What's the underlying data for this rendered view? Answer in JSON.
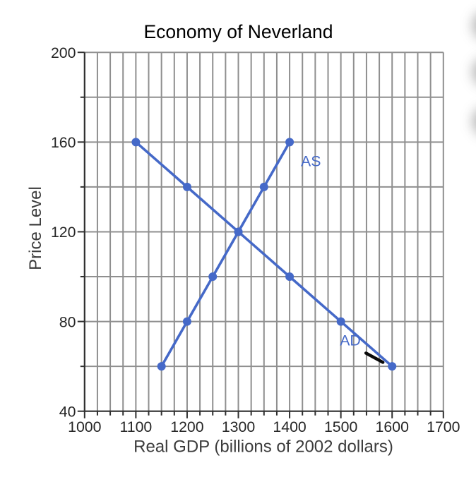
{
  "chart_data": {
    "type": "line",
    "title": "Economy of Neverland",
    "xlabel": "Real GDP (billions of 2002 dollars)",
    "ylabel": "Price Level",
    "xlim": [
      1000,
      1700
    ],
    "ylim": [
      40,
      200
    ],
    "x_major_ticks": [
      1000,
      1100,
      1200,
      1300,
      1400,
      1500,
      1600,
      1700
    ],
    "x_minor_step": 25,
    "y_major_ticks": [
      40,
      80,
      120,
      160,
      200
    ],
    "y_minor_step": 20,
    "grid": true,
    "legend_position": "inline-labels",
    "series": [
      {
        "name": "AD",
        "x": [
          1100,
          1200,
          1300,
          1400,
          1500,
          1600
        ],
        "y": [
          160,
          140,
          120,
          100,
          80,
          60
        ],
        "color": "#4569c8",
        "marker": "circle",
        "label": {
          "text": "AD",
          "x": 1498,
          "y": 69.3
        }
      },
      {
        "name": "AS",
        "x": [
          1150,
          1200,
          1250,
          1300,
          1350,
          1400
        ],
        "y": [
          60,
          80,
          100,
          120,
          140,
          160
        ],
        "color": "#4569c8",
        "marker": "circle",
        "label": {
          "text": "AS",
          "x": 1422,
          "y": 149.2
        }
      }
    ],
    "annotations": [
      {
        "type": "pen-stroke",
        "color": "#0a0a0a",
        "x1": 1549,
        "y1": 65.9,
        "x2": 1582,
        "y2": 61.8
      }
    ]
  },
  "style": {
    "background": "#ffffff",
    "grid_color": "#8f8f8f",
    "axis_color": "#2f2f2f",
    "tick_label_color": "#262626",
    "axis_title_color": "#3c3c3c",
    "title_color": "#000000",
    "series_color": "#4569c8",
    "edge_artifact_color": "#8c8c8c"
  },
  "edge_artifacts": [
    {
      "name": "blurred-edge-button-top"
    },
    {
      "name": "blurred-edge-button-middle"
    },
    {
      "name": "blurred-edge-button-bottom"
    }
  ]
}
